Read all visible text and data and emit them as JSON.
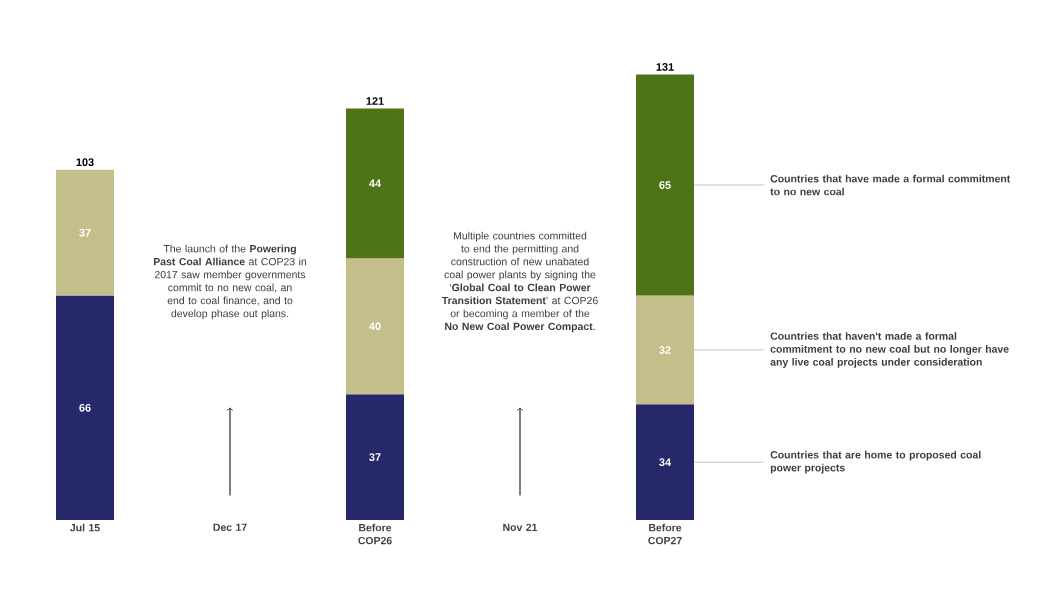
{
  "chart_data": {
    "type": "bar",
    "stacked": true,
    "data_labels": true,
    "legend": "right",
    "categories": [
      "Jul 15",
      "Dec 17",
      "Before COP26",
      "Nov 21",
      "Before COP27"
    ],
    "series": [
      {
        "name": "Countries that are home to proposed coal power projects",
        "color": "#27286a",
        "values": [
          66,
          null,
          37,
          null,
          34
        ]
      },
      {
        "name": "Countries that haven't made a formal commitment to no new coal but no longer have any live coal projects under consideration",
        "color": "#c4bf8a",
        "values": [
          37,
          null,
          40,
          null,
          32
        ]
      },
      {
        "name": "Countries that have made a formal commitment to no new coal",
        "color": "#4e7417",
        "values": [
          null,
          null,
          44,
          null,
          65
        ]
      }
    ],
    "totals": [
      "103",
      null,
      "121",
      null,
      "131"
    ],
    "annotations": [
      "The launch of the **Powering Past Coal Alliance** at COP23 in 2017 saw member governments commit to no new coal, an end to coal finance, and to develop phase out plans.",
      "Multiple countries committed to end the permitting and construction of new unabated coal power plants by signing the ‘**Global Coal to Clean Power Transition Statement**’ at COP26 or becoming a member of the **No New Coal Power Compact**."
    ]
  }
}
